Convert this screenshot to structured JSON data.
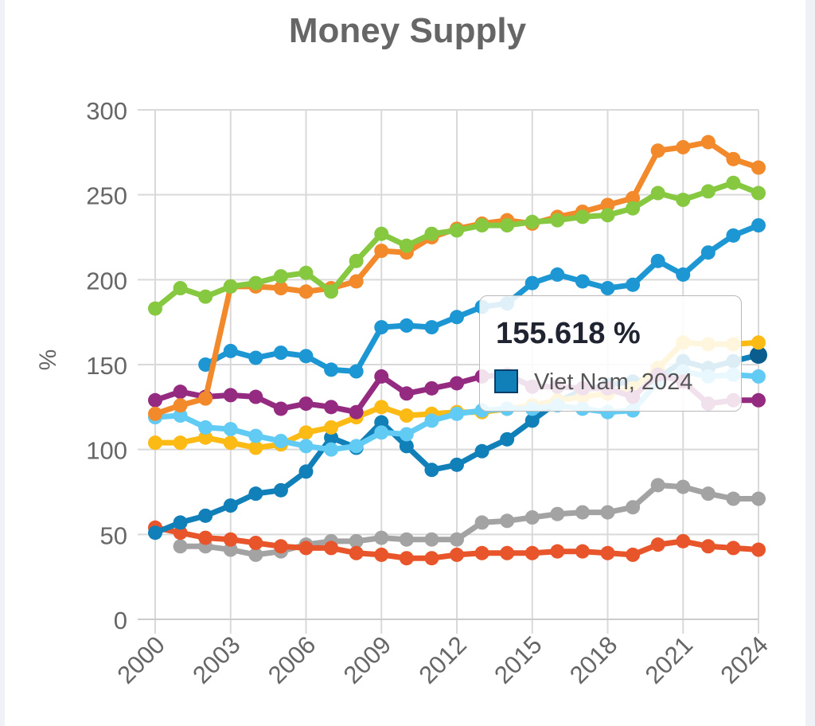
{
  "chart_data": {
    "type": "line",
    "title": "Money Supply",
    "ylabel": "%",
    "xlabel": "",
    "ylim": [
      0,
      300
    ],
    "yticks": [
      0,
      50,
      100,
      150,
      200,
      250,
      300
    ],
    "xticks": [
      2000,
      2003,
      2006,
      2009,
      2012,
      2015,
      2018,
      2021,
      2024
    ],
    "x": [
      2000,
      2001,
      2002,
      2003,
      2004,
      2005,
      2006,
      2007,
      2008,
      2009,
      2010,
      2011,
      2012,
      2013,
      2014,
      2015,
      2016,
      2017,
      2018,
      2019,
      2020,
      2021,
      2022,
      2023,
      2024
    ],
    "grid": true,
    "series": [
      {
        "color": "#a3a3a3",
        "values": [
          null,
          43,
          43,
          41,
          38,
          40,
          44,
          46,
          46,
          48,
          47,
          47,
          47,
          57,
          58,
          60,
          62,
          63,
          63,
          66,
          79,
          78,
          74,
          71,
          71
        ]
      },
      {
        "color": "#e8552b",
        "values": [
          54,
          51,
          48,
          47,
          45,
          43,
          42,
          42,
          39,
          38,
          36,
          36,
          38,
          39,
          39,
          39,
          40,
          40,
          39,
          38,
          44,
          46,
          43,
          42,
          41
        ]
      },
      {
        "color": "#1180b8",
        "values": [
          51,
          57,
          61,
          67,
          74,
          76,
          87,
          107,
          101,
          116,
          102,
          88,
          91,
          99,
          106,
          117,
          128,
          135,
          138,
          140,
          142,
          152,
          148,
          152,
          155.618
        ],
        "end_point_color": "#0b5d8d"
      },
      {
        "color": "#fbbb14",
        "values": [
          104,
          104,
          107,
          104,
          101,
          103,
          110,
          113,
          119,
          125,
          120,
          121,
          122,
          122,
          124,
          126,
          129,
          131,
          133,
          136,
          148,
          163,
          162,
          162,
          163
        ]
      },
      {
        "color": "#62cbf3",
        "values": [
          119,
          120,
          113,
          112,
          108,
          105,
          102,
          100,
          102,
          110,
          109,
          117,
          121,
          123,
          124,
          124,
          126,
          124,
          122,
          123,
          140,
          146,
          143,
          144,
          143
        ]
      },
      {
        "color": "#952b80",
        "values": [
          129,
          134,
          131,
          132,
          131,
          124,
          127,
          125,
          122,
          143,
          133,
          136,
          139,
          143,
          144,
          137,
          137,
          136,
          136,
          131,
          144,
          140,
          127,
          129,
          129
        ]
      },
      {
        "color": "#1c97d4",
        "values": [
          null,
          null,
          150,
          158,
          154,
          157,
          155,
          147,
          146,
          172,
          173,
          172,
          178,
          184,
          186,
          198,
          203,
          199,
          195,
          197,
          211,
          203,
          216,
          226,
          232
        ]
      },
      {
        "color": "#f2892a",
        "values": [
          121,
          126,
          130,
          196,
          196,
          195,
          193,
          195,
          199,
          217,
          216,
          225,
          230,
          233,
          235,
          233,
          237,
          240,
          244,
          248,
          276,
          278,
          281,
          271,
          266
        ]
      },
      {
        "color": "#87c841",
        "values": [
          183,
          195,
          190,
          196,
          198,
          202,
          204,
          193,
          211,
          227,
          220,
          227,
          229,
          232,
          232,
          234,
          235,
          237,
          238,
          242,
          251,
          247,
          252,
          257,
          251
        ]
      }
    ],
    "dashed_connector": {
      "color": "#8c8c8c",
      "from": [
        2002,
        131
      ],
      "to": [
        2003,
        196
      ]
    }
  },
  "tooltip": {
    "value": "155.618 %",
    "label": "Viet Nam, 2024",
    "swatch_color": "#1180b8"
  }
}
